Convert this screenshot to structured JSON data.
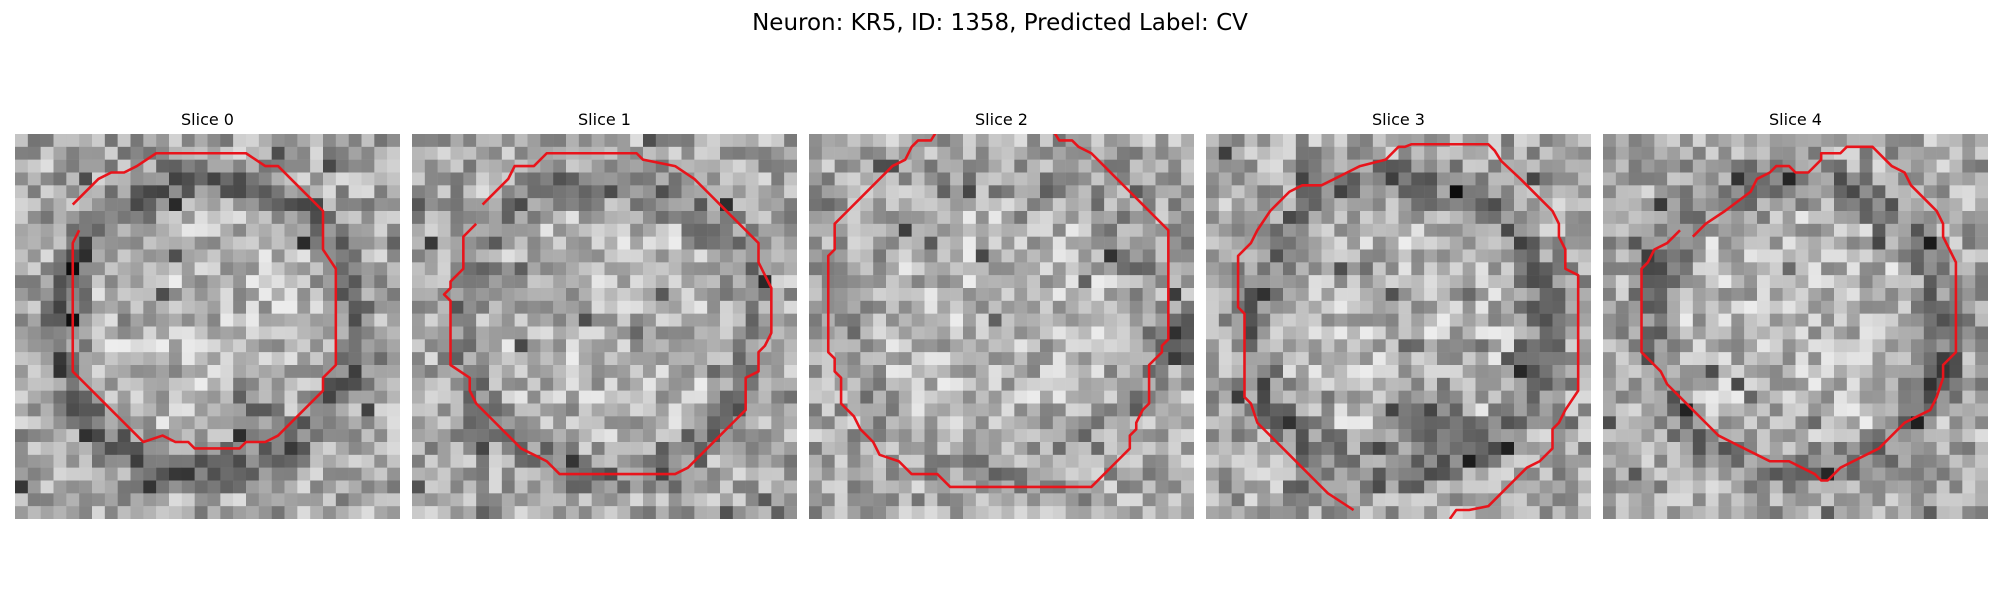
{
  "figure": {
    "title": "Neuron: KR5, ID: 1358, Predicted Label: CV",
    "contour_color": "#e8141b"
  },
  "panels": [
    {
      "title": "Slice 0",
      "seed": 11,
      "ring": 0.55,
      "dark_blob": "bottom"
    },
    {
      "title": "Slice 1",
      "seed": 23,
      "ring": 0.35,
      "dark_blob": "none"
    },
    {
      "title": "Slice 2",
      "seed": 37,
      "ring": 0.15,
      "dark_blob": "right"
    },
    {
      "title": "Slice 3",
      "seed": 41,
      "ring": 0.45,
      "dark_blob": "bottom"
    },
    {
      "title": "Slice 4",
      "seed": 59,
      "ring": 0.4,
      "dark_blob": "right-low"
    }
  ]
}
